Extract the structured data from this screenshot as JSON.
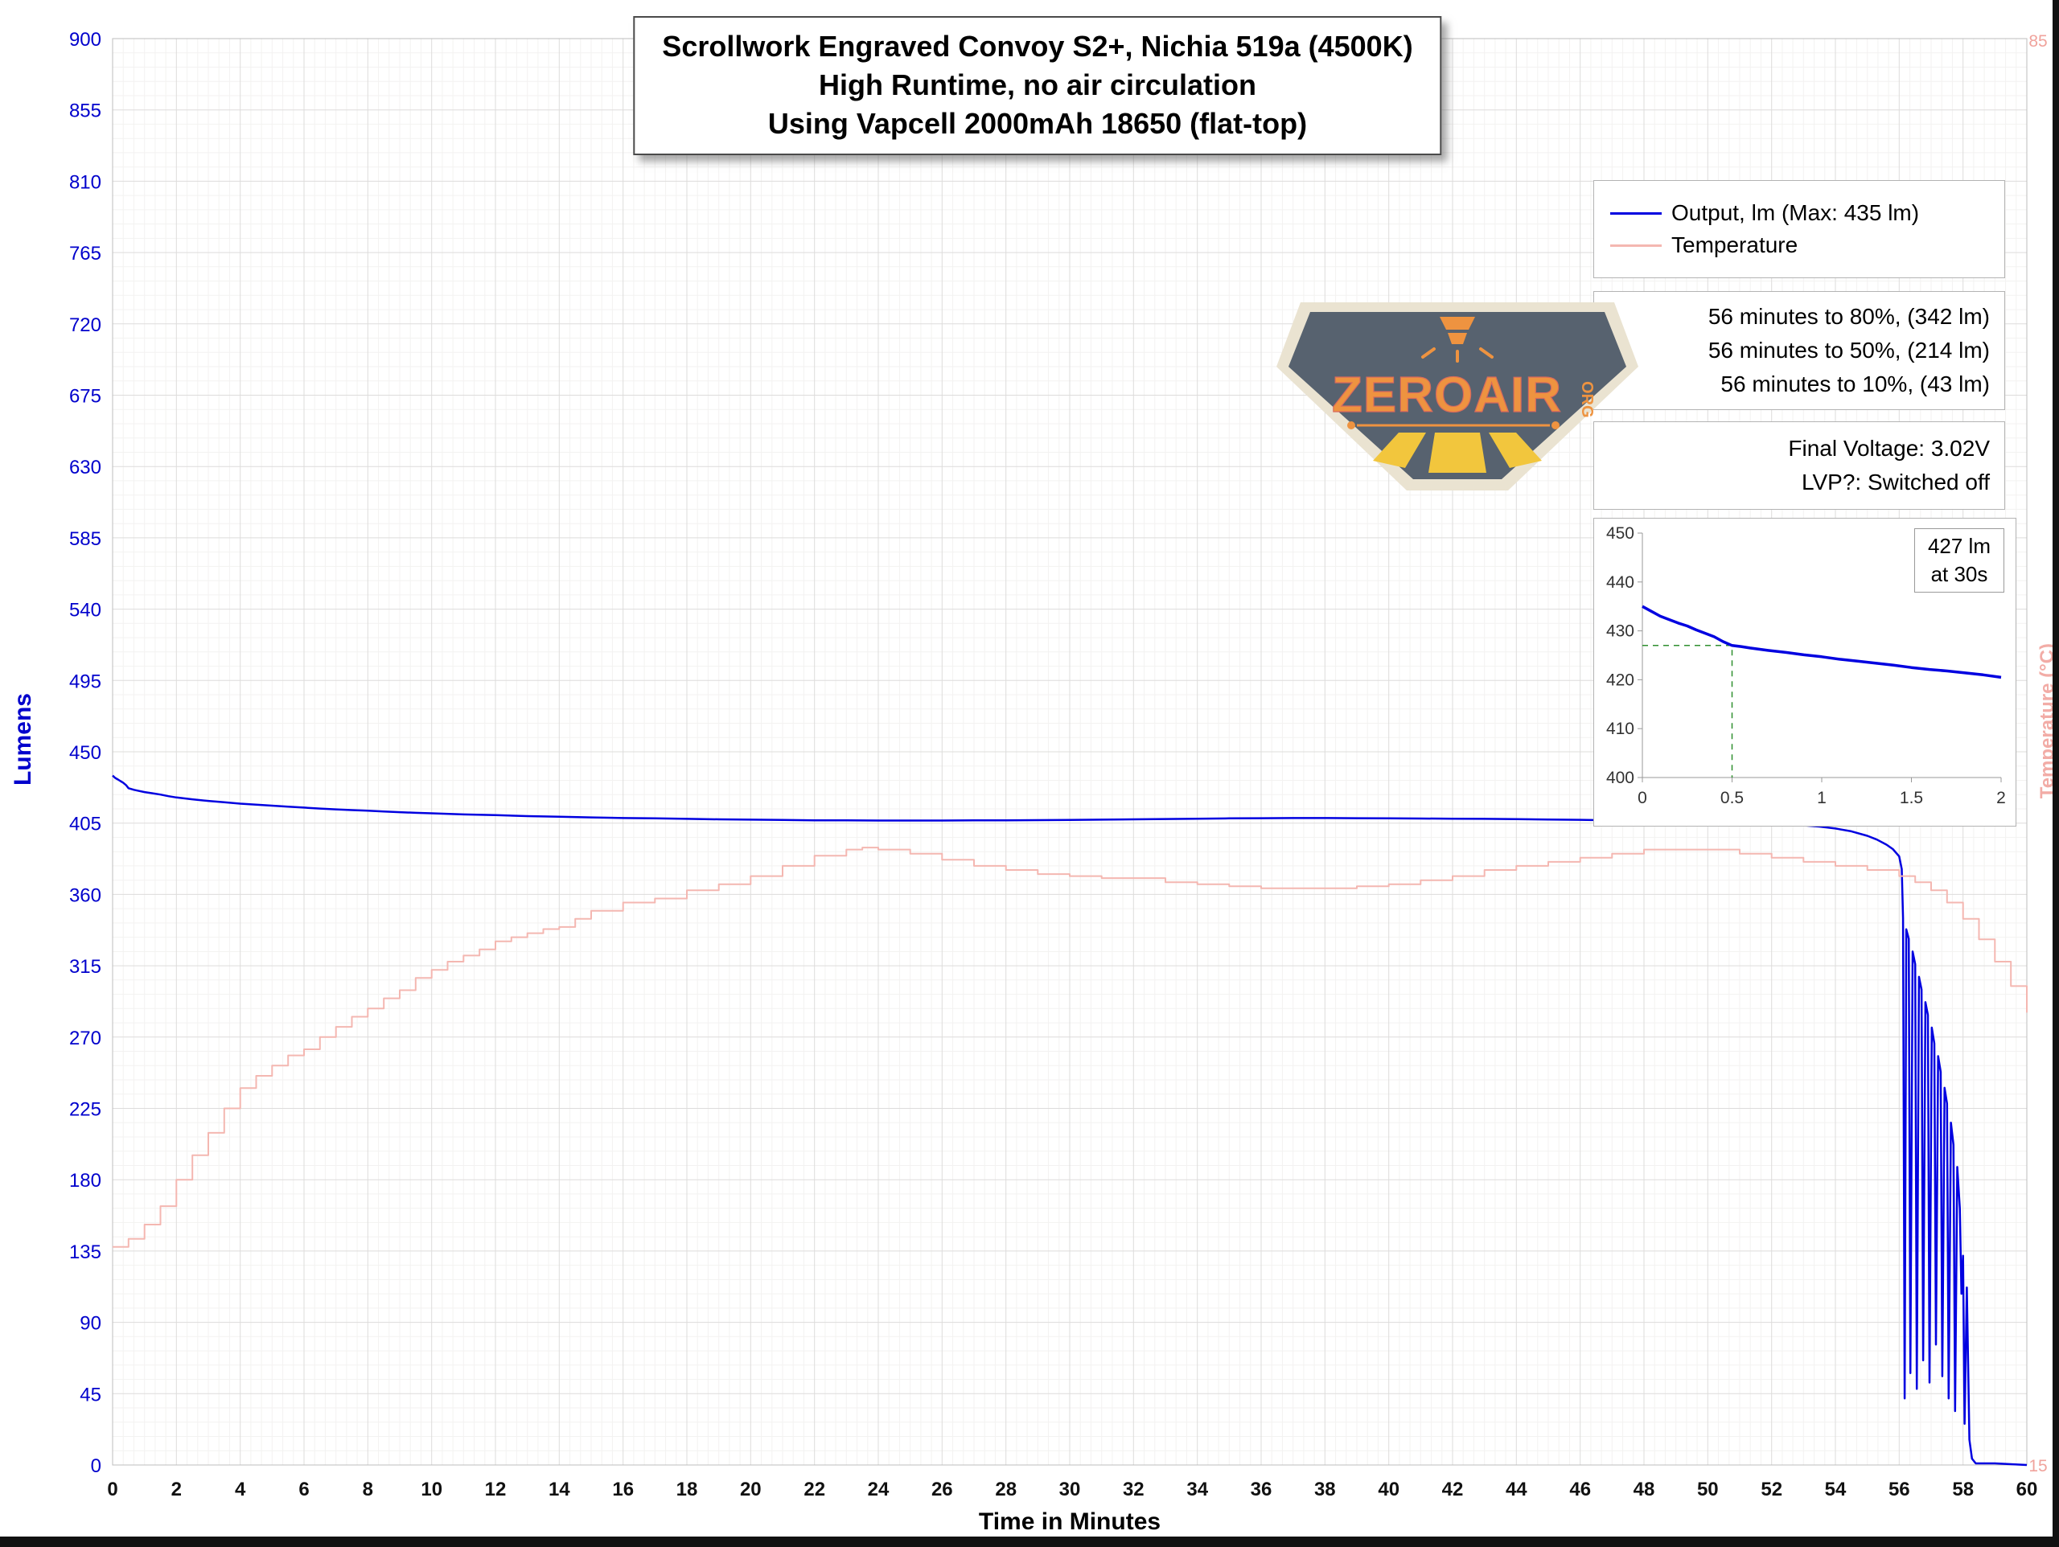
{
  "title": {
    "line1": "Scrollwork Engraved Convoy S2+, Nichia 519a (4500K)",
    "line2": "High Runtime, no air circulation",
    "line3": "Using Vapcell 2000mAh 18650 (flat-top)"
  },
  "legend": {
    "output": "Output, lm (Max: 435 lm)",
    "temperature": "Temperature"
  },
  "annotations": {
    "to80": "56 minutes to 80%, (342 lm)",
    "to50": "56 minutes to 50%, (214 lm)",
    "to10": "56 minutes to 10%, (43 lm)",
    "final_voltage": "Final Voltage:  3.02V",
    "lvp": "LVP?:  Switched off"
  },
  "axes": {
    "x_label": "Time in Minutes",
    "y_left_label": "Lumens",
    "y_right_label": "Temperature (°C)"
  },
  "inset_label": {
    "line1": "427 lm",
    "line2": "at 30s"
  },
  "logo": {
    "text": "ZEROAIR",
    "suffix": "ORG"
  },
  "colors": {
    "output_blue": "#0000e0",
    "temperature_pink": "#f4b7b1",
    "axis_blue": "#0000cc",
    "axis_pink": "#f0a39c",
    "marker_green": "#2f8f2f"
  },
  "chart_data": {
    "type": "line",
    "title": "Scrollwork Engraved Convoy S2+, Nichia 519a (4500K) — High Runtime, no air circulation — Using Vapcell 2000mAh 18650 (flat-top)",
    "xlabel": "Time in Minutes",
    "ylabel_left": "Lumens",
    "ylabel_right": "Temperature (°C)",
    "xlim": [
      0,
      60
    ],
    "x_major_step": 2,
    "ylim_left": [
      0,
      900
    ],
    "y_major_step_left": 45,
    "ylim_right": [
      15,
      85
    ],
    "right_axis_ticks": [
      15,
      85
    ],
    "grid": {
      "minor": "#f3f2f1",
      "major": "#dddcdb"
    },
    "legend_position": "top-right",
    "series": [
      {
        "name": "Output, lm (Max: 435 lm)",
        "axis": "left",
        "color": "#0000e0",
        "width": 2.5,
        "step": false,
        "points": [
          [
            0,
            435
          ],
          [
            0.08,
            433.5
          ],
          [
            0.17,
            432.5
          ],
          [
            0.25,
            431.5
          ],
          [
            0.33,
            430.5
          ],
          [
            0.42,
            429
          ],
          [
            0.5,
            427
          ],
          [
            0.67,
            426
          ],
          [
            0.83,
            425.3
          ],
          [
            1,
            424.6
          ],
          [
            1.25,
            423.8
          ],
          [
            1.5,
            423
          ],
          [
            1.75,
            422
          ],
          [
            2,
            421.2
          ],
          [
            2.5,
            420
          ],
          [
            3,
            419
          ],
          [
            3.5,
            418.2
          ],
          [
            4,
            417.3
          ],
          [
            4.5,
            416.6
          ],
          [
            5,
            416
          ],
          [
            5.5,
            415.4
          ],
          [
            6,
            414.8
          ],
          [
            6.5,
            414.2
          ],
          [
            7,
            413.7
          ],
          [
            7.5,
            413.2
          ],
          [
            8,
            412.8
          ],
          [
            8.5,
            412.3
          ],
          [
            9,
            411.9
          ],
          [
            9.5,
            411.5
          ],
          [
            10,
            411.2
          ],
          [
            11,
            410.5
          ],
          [
            12,
            410
          ],
          [
            13,
            409.4
          ],
          [
            14,
            409
          ],
          [
            15,
            408.6
          ],
          [
            16,
            408.2
          ],
          [
            17,
            408
          ],
          [
            18,
            407.7
          ],
          [
            19,
            407.4
          ],
          [
            20,
            407.2
          ],
          [
            21,
            407
          ],
          [
            22,
            406.8
          ],
          [
            23,
            406.7
          ],
          [
            24,
            406.6
          ],
          [
            25,
            406.6
          ],
          [
            26,
            406.6
          ],
          [
            27,
            406.7
          ],
          [
            28,
            406.8
          ],
          [
            29,
            406.9
          ],
          [
            30,
            407
          ],
          [
            31,
            407.2
          ],
          [
            32,
            407.4
          ],
          [
            33,
            407.6
          ],
          [
            34,
            407.8
          ],
          [
            35,
            408
          ],
          [
            36,
            408.1
          ],
          [
            37,
            408.2
          ],
          [
            38,
            408.2
          ],
          [
            39,
            408.1
          ],
          [
            40,
            408
          ],
          [
            41,
            407.9
          ],
          [
            42,
            407.8
          ],
          [
            43,
            407.7
          ],
          [
            44,
            407.5
          ],
          [
            45,
            407.3
          ],
          [
            46,
            407.1
          ],
          [
            47,
            406.8
          ],
          [
            48,
            406.5
          ],
          [
            49,
            406.2
          ],
          [
            50,
            405.8
          ],
          [
            51,
            405.3
          ],
          [
            52,
            404.6
          ],
          [
            53,
            403.6
          ],
          [
            53.5,
            402.8
          ],
          [
            54,
            401.6
          ],
          [
            54.5,
            399.8
          ],
          [
            55,
            397
          ],
          [
            55.3,
            394.6
          ],
          [
            55.6,
            391.4
          ],
          [
            55.8,
            388.6
          ],
          [
            56,
            384
          ],
          [
            56.08,
            376
          ],
          [
            56.12,
            345
          ],
          [
            56.17,
            42
          ],
          [
            56.22,
            338
          ],
          [
            56.3,
            332
          ],
          [
            56.35,
            58
          ],
          [
            56.42,
            324
          ],
          [
            56.5,
            316
          ],
          [
            56.55,
            48
          ],
          [
            56.62,
            308
          ],
          [
            56.7,
            300
          ],
          [
            56.75,
            66
          ],
          [
            56.82,
            292
          ],
          [
            56.9,
            284
          ],
          [
            56.95,
            52
          ],
          [
            57.02,
            276
          ],
          [
            57.1,
            266
          ],
          [
            57.15,
            76
          ],
          [
            57.22,
            258
          ],
          [
            57.3,
            248
          ],
          [
            57.35,
            56
          ],
          [
            57.42,
            238
          ],
          [
            57.5,
            228
          ],
          [
            57.55,
            42
          ],
          [
            57.62,
            216
          ],
          [
            57.7,
            202
          ],
          [
            57.75,
            34
          ],
          [
            57.82,
            188
          ],
          [
            57.9,
            162
          ],
          [
            57.95,
            108
          ],
          [
            58,
            132
          ],
          [
            58.05,
            26
          ],
          [
            58.12,
            112
          ],
          [
            58.2,
            16
          ],
          [
            58.28,
            4
          ],
          [
            58.4,
            1
          ],
          [
            59,
            1
          ],
          [
            60,
            0
          ]
        ]
      },
      {
        "name": "Temperature",
        "axis": "right",
        "color": "#f4b7b1",
        "width": 2,
        "step": true,
        "points": [
          [
            0,
            25.7
          ],
          [
            0.5,
            26.1
          ],
          [
            1,
            26.8
          ],
          [
            1.5,
            27.7
          ],
          [
            2,
            29
          ],
          [
            2.5,
            30.2
          ],
          [
            3,
            31.3
          ],
          [
            3.5,
            32.5
          ],
          [
            4,
            33.5
          ],
          [
            4.5,
            34.1
          ],
          [
            5,
            34.6
          ],
          [
            5.5,
            35.1
          ],
          [
            6,
            35.4
          ],
          [
            6.5,
            36
          ],
          [
            7,
            36.5
          ],
          [
            7.5,
            37
          ],
          [
            8,
            37.4
          ],
          [
            8.5,
            37.9
          ],
          [
            9,
            38.3
          ],
          [
            9.5,
            38.9
          ],
          [
            10,
            39.3
          ],
          [
            10.5,
            39.7
          ],
          [
            11,
            40
          ],
          [
            11.5,
            40.3
          ],
          [
            12,
            40.7
          ],
          [
            12.5,
            40.9
          ],
          [
            13,
            41.1
          ],
          [
            13.5,
            41.3
          ],
          [
            14,
            41.4
          ],
          [
            14.5,
            41.8
          ],
          [
            15,
            42.2
          ],
          [
            16,
            42.6
          ],
          [
            17,
            42.8
          ],
          [
            18,
            43.2
          ],
          [
            19,
            43.5
          ],
          [
            20,
            43.9
          ],
          [
            21,
            44.4
          ],
          [
            22,
            44.9
          ],
          [
            23,
            45.2
          ],
          [
            23.5,
            45.3
          ],
          [
            24,
            45.2
          ],
          [
            25,
            45
          ],
          [
            26,
            44.7
          ],
          [
            27,
            44.4
          ],
          [
            28,
            44.2
          ],
          [
            29,
            44
          ],
          [
            30,
            43.9
          ],
          [
            31,
            43.8
          ],
          [
            32,
            43.8
          ],
          [
            33,
            43.6
          ],
          [
            34,
            43.5
          ],
          [
            35,
            43.4
          ],
          [
            36,
            43.3
          ],
          [
            37,
            43.3
          ],
          [
            38,
            43.3
          ],
          [
            39,
            43.4
          ],
          [
            40,
            43.5
          ],
          [
            41,
            43.7
          ],
          [
            42,
            43.9
          ],
          [
            43,
            44.2
          ],
          [
            44,
            44.4
          ],
          [
            45,
            44.6
          ],
          [
            46,
            44.8
          ],
          [
            47,
            45
          ],
          [
            48,
            45.2
          ],
          [
            49,
            45.2
          ],
          [
            50,
            45.2
          ],
          [
            51,
            45
          ],
          [
            52,
            44.8
          ],
          [
            53,
            44.6
          ],
          [
            54,
            44.4
          ],
          [
            55,
            44.2
          ],
          [
            56,
            43.9
          ],
          [
            56.5,
            43.6
          ],
          [
            57,
            43.2
          ],
          [
            57.5,
            42.6
          ],
          [
            58,
            41.8
          ],
          [
            58.5,
            40.8
          ],
          [
            59,
            39.7
          ],
          [
            59.5,
            38.5
          ],
          [
            60,
            37.2
          ]
        ]
      }
    ],
    "inset": {
      "xlim": [
        0,
        2
      ],
      "ylim": [
        400,
        450
      ],
      "x_ticks": [
        0,
        0.5,
        1,
        1.5,
        2
      ],
      "y_ticks": [
        400,
        410,
        420,
        430,
        440,
        450
      ],
      "marker": {
        "x": 0.5,
        "y": 427,
        "color": "#2f8f2f",
        "label": "427 lm at 30s"
      },
      "series": {
        "color": "#0000e0",
        "points": [
          [
            0,
            435
          ],
          [
            0.05,
            434
          ],
          [
            0.1,
            433
          ],
          [
            0.15,
            432.3
          ],
          [
            0.2,
            431.6
          ],
          [
            0.25,
            431
          ],
          [
            0.3,
            430.2
          ],
          [
            0.35,
            429.5
          ],
          [
            0.4,
            428.8
          ],
          [
            0.45,
            427.8
          ],
          [
            0.5,
            427
          ],
          [
            0.55,
            426.8
          ],
          [
            0.6,
            426.5
          ],
          [
            0.7,
            426
          ],
          [
            0.8,
            425.6
          ],
          [
            0.9,
            425.1
          ],
          [
            1,
            424.7
          ],
          [
            1.1,
            424.2
          ],
          [
            1.2,
            423.8
          ],
          [
            1.3,
            423.4
          ],
          [
            1.4,
            423
          ],
          [
            1.5,
            422.5
          ],
          [
            1.6,
            422.1
          ],
          [
            1.7,
            421.8
          ],
          [
            1.8,
            421.4
          ],
          [
            1.9,
            421
          ],
          [
            2,
            420.5
          ]
        ]
      }
    }
  }
}
